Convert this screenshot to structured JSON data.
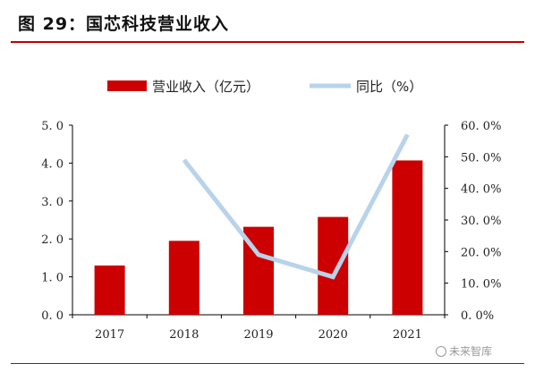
{
  "figure": {
    "title": "图 29：国芯科技营业收入"
  },
  "watermark": {
    "icon": "sound-wave-icon",
    "text": "未来智库"
  },
  "colors": {
    "bar": "#cc0000",
    "line": "#b8d3ea",
    "accent_rule": "#c00000",
    "axis": "#000000"
  },
  "chart_data": {
    "type": "bar",
    "categories": [
      "2017",
      "2018",
      "2019",
      "2020",
      "2021"
    ],
    "series": [
      {
        "name": "营业收入（亿元）",
        "type": "bar",
        "axis": "left",
        "values": [
          1.3,
          1.95,
          2.32,
          2.58,
          4.07
        ]
      },
      {
        "name": "同比（%）",
        "type": "line",
        "axis": "right",
        "values": [
          null,
          49,
          19,
          12,
          57
        ]
      }
    ],
    "y_left": {
      "min": 0,
      "max": 5,
      "ticks": [
        0,
        1,
        2,
        3,
        4,
        5
      ],
      "tick_labels": [
        "0. 0",
        "1. 0",
        "2. 0",
        "3. 0",
        "4. 0",
        "5. 0"
      ]
    },
    "y_right": {
      "min": 0,
      "max": 60,
      "ticks": [
        0,
        10,
        20,
        30,
        40,
        50,
        60
      ],
      "tick_labels": [
        "0. 0%",
        "10. 0%",
        "20. 0%",
        "30. 0%",
        "40. 0%",
        "50. 0%",
        "60. 0%"
      ]
    },
    "xlabel": "",
    "grid": false,
    "legend_position": "top-center"
  }
}
